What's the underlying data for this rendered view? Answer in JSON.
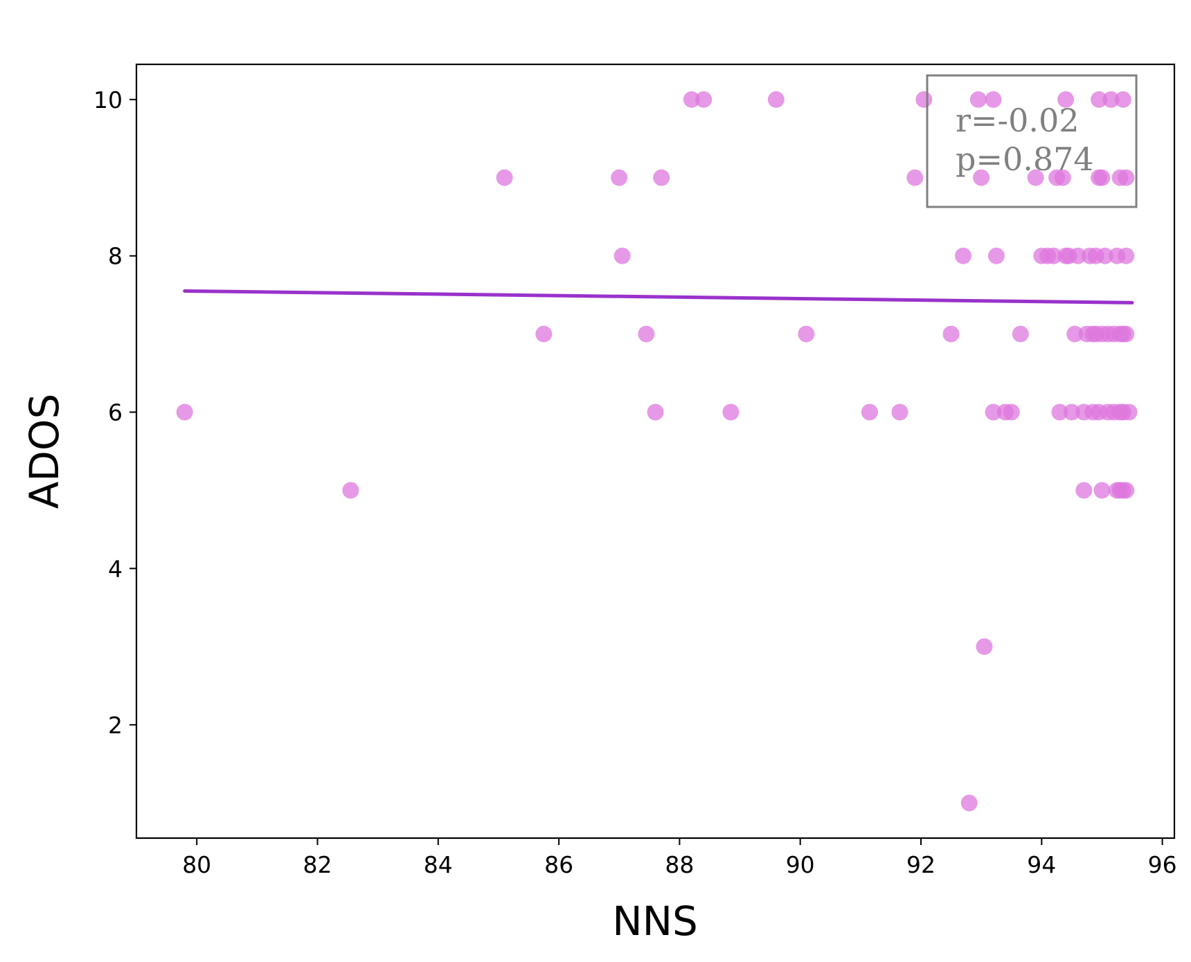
{
  "chart_data": {
    "type": "scatter",
    "title": "",
    "xlabel": "NNS",
    "ylabel": "ADOS",
    "xlim": [
      79,
      96.2
    ],
    "ylim": [
      0.55,
      10.45
    ],
    "x_ticks": [
      80,
      82,
      84,
      86,
      88,
      90,
      92,
      94,
      96
    ],
    "y_ticks": [
      2,
      4,
      6,
      8,
      10
    ],
    "grid": false,
    "point_color": "#dd77dd",
    "line_color": "#9932cc",
    "series": [
      {
        "points": [
          [
            79.8,
            6
          ],
          [
            82.55,
            5
          ],
          [
            85.1,
            9
          ],
          [
            85.75,
            7
          ],
          [
            87.0,
            9
          ],
          [
            87.05,
            8
          ],
          [
            87.45,
            7
          ],
          [
            87.6,
            6
          ],
          [
            87.7,
            9
          ],
          [
            88.2,
            10
          ],
          [
            88.4,
            10
          ],
          [
            88.85,
            6
          ],
          [
            89.6,
            10
          ],
          [
            90.1,
            7
          ],
          [
            91.15,
            6
          ],
          [
            91.65,
            6
          ],
          [
            91.9,
            9
          ],
          [
            92.05,
            10
          ],
          [
            92.5,
            7
          ],
          [
            92.7,
            8
          ],
          [
            92.8,
            1
          ],
          [
            92.95,
            10
          ],
          [
            93.0,
            9
          ],
          [
            93.05,
            3
          ],
          [
            93.2,
            6
          ],
          [
            93.2,
            10
          ],
          [
            93.25,
            8
          ],
          [
            93.4,
            6
          ],
          [
            93.5,
            6
          ],
          [
            93.65,
            7
          ],
          [
            93.9,
            9
          ],
          [
            94.0,
            8
          ],
          [
            94.1,
            8
          ],
          [
            94.2,
            8
          ],
          [
            94.25,
            9
          ],
          [
            94.3,
            6
          ],
          [
            94.35,
            9
          ],
          [
            94.4,
            8
          ],
          [
            94.4,
            10
          ],
          [
            94.45,
            8
          ],
          [
            94.5,
            6
          ],
          [
            94.55,
            7
          ],
          [
            94.6,
            8
          ],
          [
            94.7,
            5
          ],
          [
            94.7,
            6
          ],
          [
            94.75,
            7
          ],
          [
            94.8,
            8
          ],
          [
            94.85,
            6
          ],
          [
            94.85,
            7
          ],
          [
            94.9,
            7
          ],
          [
            94.9,
            8
          ],
          [
            94.95,
            6
          ],
          [
            94.95,
            9
          ],
          [
            94.95,
            10
          ],
          [
            95.0,
            7
          ],
          [
            95.0,
            5
          ],
          [
            95.0,
            9
          ],
          [
            95.05,
            8
          ],
          [
            95.1,
            7
          ],
          [
            95.1,
            6
          ],
          [
            95.15,
            10
          ],
          [
            95.2,
            6
          ],
          [
            95.2,
            7
          ],
          [
            95.25,
            8
          ],
          [
            95.25,
            5
          ],
          [
            95.3,
            9
          ],
          [
            95.3,
            6
          ],
          [
            95.3,
            7
          ],
          [
            95.3,
            5
          ],
          [
            95.35,
            10
          ],
          [
            95.35,
            7
          ],
          [
            95.35,
            6
          ],
          [
            95.35,
            5
          ],
          [
            95.4,
            8
          ],
          [
            95.4,
            9
          ],
          [
            95.4,
            7
          ],
          [
            95.4,
            5
          ],
          [
            95.45,
            6
          ]
        ]
      }
    ],
    "trend_line": {
      "x": [
        79.8,
        95.5
      ],
      "y": [
        7.55,
        7.4
      ]
    },
    "annotation": {
      "r_text": "r=-0.02",
      "p_text": "p=0.874",
      "position": "top-right"
    }
  }
}
